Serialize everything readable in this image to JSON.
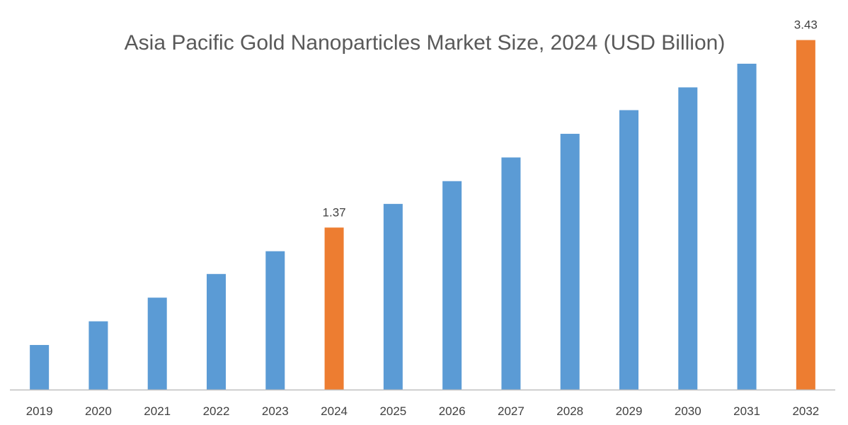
{
  "chart_data": {
    "type": "bar",
    "title": "Asia Pacific Gold Nanoparticles Market Size, 2024 (USD Billion)",
    "xlabel": "",
    "ylabel": "",
    "categories": [
      "2019",
      "2020",
      "2021",
      "2022",
      "2023",
      "2024",
      "2025",
      "2026",
      "2027",
      "2028",
      "2029",
      "2030",
      "2031",
      "2032"
    ],
    "values": [
      0.08,
      0.34,
      0.6,
      0.86,
      1.11,
      1.37,
      1.63,
      1.88,
      2.14,
      2.4,
      2.66,
      2.91,
      3.17,
      3.43
    ],
    "data_labels": {
      "2024": "1.37",
      "2032": "3.43"
    },
    "highlight_categories": [
      "2024",
      "2032"
    ],
    "ylim": [
      -0.41,
      3.87
    ],
    "grid": false,
    "y_axis_visible": false,
    "colors": {
      "default": "#5B9BD5",
      "highlight": "#ED7D31",
      "axis": "#BFBFBF"
    }
  }
}
